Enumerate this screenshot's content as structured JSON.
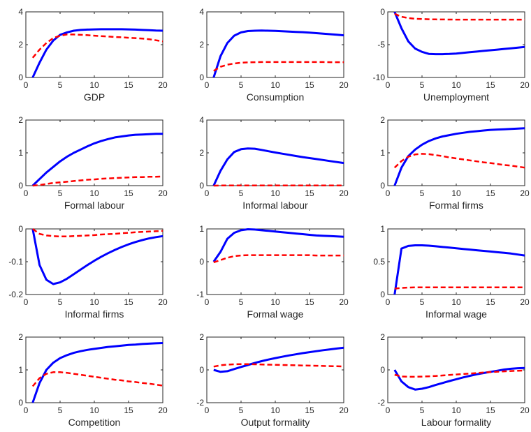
{
  "chart_data": [
    {
      "type": "line",
      "title": "GDP",
      "x": [
        1,
        2,
        3,
        4,
        5,
        6,
        7,
        8,
        9,
        10,
        11,
        12,
        13,
        14,
        15,
        16,
        17,
        18,
        19,
        20
      ],
      "xlim": [
        0,
        20
      ],
      "ylim": [
        0,
        4
      ],
      "xticks": [
        0,
        5,
        10,
        15,
        20
      ],
      "yticks": [
        0,
        2,
        4
      ],
      "grid": false,
      "colors": [
        "#0000ff",
        "#ff0000"
      ],
      "series": [
        {
          "values": [
            0,
            0.9,
            1.7,
            2.25,
            2.6,
            2.75,
            2.85,
            2.9,
            2.92,
            2.93,
            2.94,
            2.94,
            2.94,
            2.94,
            2.93,
            2.92,
            2.9,
            2.88,
            2.86,
            2.85
          ]
        },
        {
          "values": [
            1.2,
            1.7,
            2.1,
            2.4,
            2.55,
            2.62,
            2.62,
            2.6,
            2.58,
            2.55,
            2.52,
            2.5,
            2.47,
            2.45,
            2.42,
            2.4,
            2.37,
            2.33,
            2.27,
            2.2
          ]
        }
      ]
    },
    {
      "type": "line",
      "title": "Consumption",
      "x": [
        1,
        2,
        3,
        4,
        5,
        6,
        7,
        8,
        9,
        10,
        11,
        12,
        13,
        14,
        15,
        16,
        17,
        18,
        19,
        20
      ],
      "xlim": [
        0,
        20
      ],
      "ylim": [
        0,
        4
      ],
      "xticks": [
        0,
        5,
        10,
        15,
        20
      ],
      "yticks": [
        0,
        2,
        4
      ],
      "grid": false,
      "colors": [
        "#0000ff",
        "#ff0000"
      ],
      "series": [
        {
          "values": [
            0,
            1.3,
            2.1,
            2.55,
            2.75,
            2.83,
            2.85,
            2.86,
            2.85,
            2.84,
            2.82,
            2.8,
            2.78,
            2.76,
            2.73,
            2.7,
            2.67,
            2.64,
            2.61,
            2.57
          ]
        },
        {
          "values": [
            0.4,
            0.65,
            0.78,
            0.85,
            0.9,
            0.92,
            0.93,
            0.94,
            0.94,
            0.94,
            0.94,
            0.94,
            0.94,
            0.94,
            0.94,
            0.94,
            0.94,
            0.93,
            0.93,
            0.93
          ]
        }
      ]
    },
    {
      "type": "line",
      "title": "Unemployment",
      "x": [
        1,
        2,
        3,
        4,
        5,
        6,
        7,
        8,
        9,
        10,
        11,
        12,
        13,
        14,
        15,
        16,
        17,
        18,
        19,
        20
      ],
      "xlim": [
        0,
        20
      ],
      "ylim": [
        -10,
        0
      ],
      "xticks": [
        0,
        5,
        10,
        15,
        20
      ],
      "yticks": [
        -10,
        -5,
        0
      ],
      "grid": false,
      "colors": [
        "#0000ff",
        "#ff0000"
      ],
      "series": [
        {
          "values": [
            0,
            -2.5,
            -4.5,
            -5.6,
            -6.1,
            -6.4,
            -6.45,
            -6.45,
            -6.42,
            -6.35,
            -6.25,
            -6.15,
            -6.05,
            -5.95,
            -5.85,
            -5.75,
            -5.65,
            -5.55,
            -5.45,
            -5.35
          ]
        },
        {
          "values": [
            -0.3,
            -0.75,
            -0.95,
            -1.05,
            -1.1,
            -1.13,
            -1.15,
            -1.16,
            -1.17,
            -1.18,
            -1.18,
            -1.18,
            -1.18,
            -1.18,
            -1.18,
            -1.18,
            -1.18,
            -1.18,
            -1.18,
            -1.18
          ]
        }
      ]
    },
    {
      "type": "line",
      "title": "Formal labour",
      "x": [
        1,
        2,
        3,
        4,
        5,
        6,
        7,
        8,
        9,
        10,
        11,
        12,
        13,
        14,
        15,
        16,
        17,
        18,
        19,
        20
      ],
      "xlim": [
        0,
        20
      ],
      "ylim": [
        0,
        2
      ],
      "xticks": [
        0,
        5,
        10,
        15,
        20
      ],
      "yticks": [
        0,
        1,
        2
      ],
      "grid": false,
      "colors": [
        "#0000ff",
        "#ff0000"
      ],
      "series": [
        {
          "values": [
            0,
            0.2,
            0.4,
            0.57,
            0.74,
            0.88,
            1.0,
            1.1,
            1.2,
            1.29,
            1.36,
            1.42,
            1.47,
            1.5,
            1.53,
            1.55,
            1.56,
            1.57,
            1.58,
            1.58
          ]
        },
        {
          "values": [
            0,
            0.02,
            0.05,
            0.08,
            0.1,
            0.12,
            0.14,
            0.16,
            0.18,
            0.19,
            0.21,
            0.22,
            0.23,
            0.24,
            0.25,
            0.26,
            0.26,
            0.27,
            0.27,
            0.28
          ]
        }
      ]
    },
    {
      "type": "line",
      "title": "Informal labour",
      "x": [
        1,
        2,
        3,
        4,
        5,
        6,
        7,
        8,
        9,
        10,
        11,
        12,
        13,
        14,
        15,
        16,
        17,
        18,
        19,
        20
      ],
      "xlim": [
        0,
        20
      ],
      "ylim": [
        0,
        4
      ],
      "xticks": [
        0,
        5,
        10,
        15,
        20
      ],
      "yticks": [
        0,
        2,
        4
      ],
      "grid": false,
      "colors": [
        "#0000ff",
        "#ff0000"
      ],
      "series": [
        {
          "values": [
            0,
            0.9,
            1.6,
            2.05,
            2.22,
            2.27,
            2.25,
            2.18,
            2.1,
            2.02,
            1.95,
            1.88,
            1.81,
            1.74,
            1.68,
            1.62,
            1.56,
            1.5,
            1.44,
            1.38
          ]
        },
        {
          "values": [
            0,
            0.01,
            0.01,
            0.01,
            0.01,
            0.01,
            0.01,
            0.01,
            0.01,
            0.01,
            0.01,
            0.01,
            0.01,
            0.01,
            0.01,
            0.01,
            0.01,
            0.01,
            0.01,
            0.01
          ]
        }
      ]
    },
    {
      "type": "line",
      "title": "Formal firms",
      "x": [
        1,
        2,
        3,
        4,
        5,
        6,
        7,
        8,
        9,
        10,
        11,
        12,
        13,
        14,
        15,
        16,
        17,
        18,
        19,
        20
      ],
      "xlim": [
        0,
        20
      ],
      "ylim": [
        0,
        2
      ],
      "xticks": [
        0,
        5,
        10,
        15,
        20
      ],
      "yticks": [
        0,
        1,
        2
      ],
      "grid": false,
      "colors": [
        "#0000ff",
        "#ff0000"
      ],
      "series": [
        {
          "values": [
            0,
            0.55,
            0.9,
            1.1,
            1.25,
            1.36,
            1.44,
            1.5,
            1.54,
            1.58,
            1.61,
            1.64,
            1.66,
            1.68,
            1.7,
            1.71,
            1.72,
            1.73,
            1.74,
            1.75
          ]
        },
        {
          "values": [
            0.55,
            0.75,
            0.88,
            0.95,
            0.97,
            0.96,
            0.93,
            0.9,
            0.86,
            0.83,
            0.8,
            0.77,
            0.74,
            0.71,
            0.69,
            0.66,
            0.63,
            0.61,
            0.58,
            0.55
          ]
        }
      ]
    },
    {
      "type": "line",
      "title": "Informal firms",
      "x": [
        1,
        2,
        3,
        4,
        5,
        6,
        7,
        8,
        9,
        10,
        11,
        12,
        13,
        14,
        15,
        16,
        17,
        18,
        19,
        20
      ],
      "xlim": [
        0,
        20
      ],
      "ylim": [
        -0.2,
        0
      ],
      "xticks": [
        0,
        5,
        10,
        15,
        20
      ],
      "yticks": [
        -0.2,
        -0.1,
        0
      ],
      "grid": false,
      "colors": [
        "#0000ff",
        "#ff0000"
      ],
      "series": [
        {
          "values": [
            0,
            -0.11,
            -0.155,
            -0.168,
            -0.163,
            -0.152,
            -0.138,
            -0.124,
            -0.11,
            -0.097,
            -0.085,
            -0.074,
            -0.064,
            -0.055,
            -0.047,
            -0.04,
            -0.034,
            -0.029,
            -0.025,
            -0.022
          ]
        },
        {
          "values": [
            0,
            -0.015,
            -0.02,
            -0.022,
            -0.023,
            -0.023,
            -0.022,
            -0.021,
            -0.02,
            -0.019,
            -0.017,
            -0.016,
            -0.015,
            -0.013,
            -0.012,
            -0.01,
            -0.009,
            -0.008,
            -0.007,
            -0.006
          ]
        }
      ]
    },
    {
      "type": "line",
      "title": "Formal wage",
      "x": [
        1,
        2,
        3,
        4,
        5,
        6,
        7,
        8,
        9,
        10,
        11,
        12,
        13,
        14,
        15,
        16,
        17,
        18,
        19,
        20
      ],
      "xlim": [
        0,
        20
      ],
      "ylim": [
        -1,
        1
      ],
      "xticks": [
        0,
        5,
        10,
        15,
        20
      ],
      "yticks": [
        -1,
        0,
        1
      ],
      "grid": false,
      "colors": [
        "#0000ff",
        "#ff0000"
      ],
      "series": [
        {
          "values": [
            0,
            0.3,
            0.7,
            0.88,
            0.96,
            0.99,
            0.98,
            0.96,
            0.94,
            0.92,
            0.9,
            0.88,
            0.86,
            0.84,
            0.82,
            0.8,
            0.79,
            0.78,
            0.77,
            0.76
          ]
        },
        {
          "values": [
            -0.02,
            0.05,
            0.12,
            0.17,
            0.19,
            0.2,
            0.2,
            0.2,
            0.2,
            0.2,
            0.2,
            0.2,
            0.2,
            0.2,
            0.2,
            0.19,
            0.19,
            0.19,
            0.19,
            0.19
          ]
        }
      ]
    },
    {
      "type": "line",
      "title": "Informal wage",
      "x": [
        1,
        2,
        3,
        4,
        5,
        6,
        7,
        8,
        9,
        10,
        11,
        12,
        13,
        14,
        15,
        16,
        17,
        18,
        19,
        20
      ],
      "xlim": [
        0,
        20
      ],
      "ylim": [
        0,
        1
      ],
      "xticks": [
        0,
        5,
        10,
        15,
        20
      ],
      "yticks": [
        0,
        0.5,
        1
      ],
      "grid": false,
      "colors": [
        "#0000ff",
        "#ff0000"
      ],
      "series": [
        {
          "values": [
            0,
            0.7,
            0.74,
            0.75,
            0.75,
            0.745,
            0.735,
            0.725,
            0.715,
            0.705,
            0.695,
            0.685,
            0.675,
            0.665,
            0.655,
            0.645,
            0.635,
            0.625,
            0.61,
            0.595
          ]
        },
        {
          "values": [
            0.09,
            0.1,
            0.105,
            0.11,
            0.11,
            0.11,
            0.11,
            0.11,
            0.11,
            0.11,
            0.11,
            0.11,
            0.11,
            0.11,
            0.11,
            0.11,
            0.11,
            0.11,
            0.11,
            0.11
          ]
        }
      ]
    },
    {
      "type": "line",
      "title": "Competition",
      "x": [
        1,
        2,
        3,
        4,
        5,
        6,
        7,
        8,
        9,
        10,
        11,
        12,
        13,
        14,
        15,
        16,
        17,
        18,
        19,
        20
      ],
      "xlim": [
        0,
        20
      ],
      "ylim": [
        0,
        2
      ],
      "xticks": [
        0,
        5,
        10,
        15,
        20
      ],
      "yticks": [
        0,
        1,
        2
      ],
      "grid": false,
      "colors": [
        "#0000ff",
        "#ff0000"
      ],
      "series": [
        {
          "values": [
            0,
            0.6,
            1.0,
            1.22,
            1.36,
            1.45,
            1.52,
            1.57,
            1.61,
            1.64,
            1.67,
            1.7,
            1.72,
            1.74,
            1.76,
            1.77,
            1.79,
            1.8,
            1.81,
            1.82
          ]
        },
        {
          "values": [
            0.5,
            0.75,
            0.88,
            0.93,
            0.93,
            0.91,
            0.88,
            0.85,
            0.82,
            0.79,
            0.76,
            0.73,
            0.7,
            0.68,
            0.65,
            0.63,
            0.6,
            0.58,
            0.55,
            0.52
          ]
        }
      ]
    },
    {
      "type": "line",
      "title": "Output formality",
      "x": [
        1,
        2,
        3,
        4,
        5,
        6,
        7,
        8,
        9,
        10,
        11,
        12,
        13,
        14,
        15,
        16,
        17,
        18,
        19,
        20
      ],
      "xlim": [
        0,
        20
      ],
      "ylim": [
        -2,
        2
      ],
      "xticks": [
        0,
        5,
        10,
        15,
        20
      ],
      "yticks": [
        -2,
        0,
        2
      ],
      "grid": false,
      "colors": [
        "#0000ff",
        "#ff0000"
      ],
      "series": [
        {
          "values": [
            0,
            -0.12,
            -0.08,
            0.05,
            0.18,
            0.3,
            0.42,
            0.53,
            0.63,
            0.72,
            0.8,
            0.88,
            0.95,
            1.02,
            1.08,
            1.14,
            1.2,
            1.25,
            1.3,
            1.35
          ]
        },
        {
          "values": [
            0.2,
            0.28,
            0.32,
            0.34,
            0.35,
            0.35,
            0.34,
            0.33,
            0.32,
            0.31,
            0.3,
            0.29,
            0.28,
            0.27,
            0.26,
            0.25,
            0.24,
            0.23,
            0.22,
            0.21
          ]
        }
      ]
    },
    {
      "type": "line",
      "title": "Labour formality",
      "x": [
        1,
        2,
        3,
        4,
        5,
        6,
        7,
        8,
        9,
        10,
        11,
        12,
        13,
        14,
        15,
        16,
        17,
        18,
        19,
        20
      ],
      "xlim": [
        0,
        20
      ],
      "ylim": [
        -2,
        2
      ],
      "xticks": [
        0,
        5,
        10,
        15,
        20
      ],
      "yticks": [
        -2,
        0,
        2
      ],
      "grid": false,
      "colors": [
        "#0000ff",
        "#ff0000"
      ],
      "series": [
        {
          "values": [
            0,
            -0.7,
            -1.05,
            -1.2,
            -1.15,
            -1.05,
            -0.92,
            -0.8,
            -0.68,
            -0.57,
            -0.46,
            -0.36,
            -0.27,
            -0.19,
            -0.12,
            -0.05,
            0.02,
            0.07,
            0.1,
            0.12
          ]
        },
        {
          "values": [
            -0.3,
            -0.4,
            -0.42,
            -0.42,
            -0.41,
            -0.39,
            -0.37,
            -0.34,
            -0.31,
            -0.28,
            -0.25,
            -0.22,
            -0.19,
            -0.16,
            -0.13,
            -0.11,
            -0.09,
            -0.07,
            -0.05,
            -0.04
          ]
        }
      ]
    }
  ]
}
